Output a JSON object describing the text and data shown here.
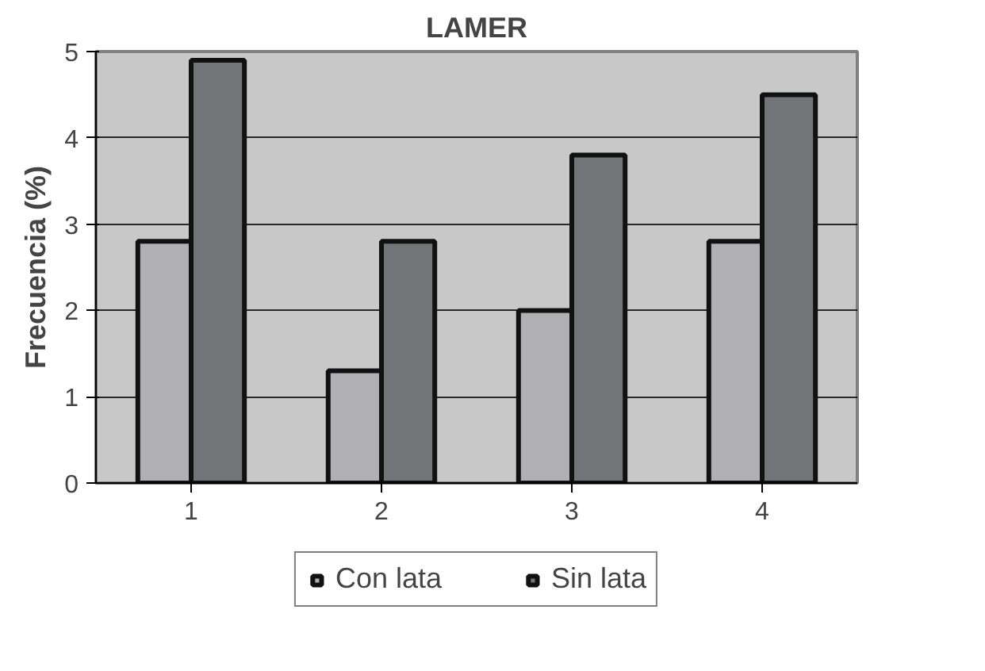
{
  "chart_data": {
    "type": "bar",
    "title": "LAMER",
    "ylabel": "Frecuencia (%)",
    "categories": [
      "1",
      "2",
      "3",
      "4"
    ],
    "series": [
      {
        "name": "Con lata",
        "color": "#b0b0b2",
        "values": [
          2.8,
          1.3,
          2.0,
          2.8
        ]
      },
      {
        "name": "Sin lata",
        "color": "#737477",
        "values": [
          4.9,
          2.8,
          3.8,
          4.5
        ]
      }
    ],
    "ylim": [
      0,
      5
    ],
    "yticks": [
      0,
      1,
      2,
      3,
      4,
      5
    ],
    "grid": "y",
    "legend": "bottom"
  }
}
